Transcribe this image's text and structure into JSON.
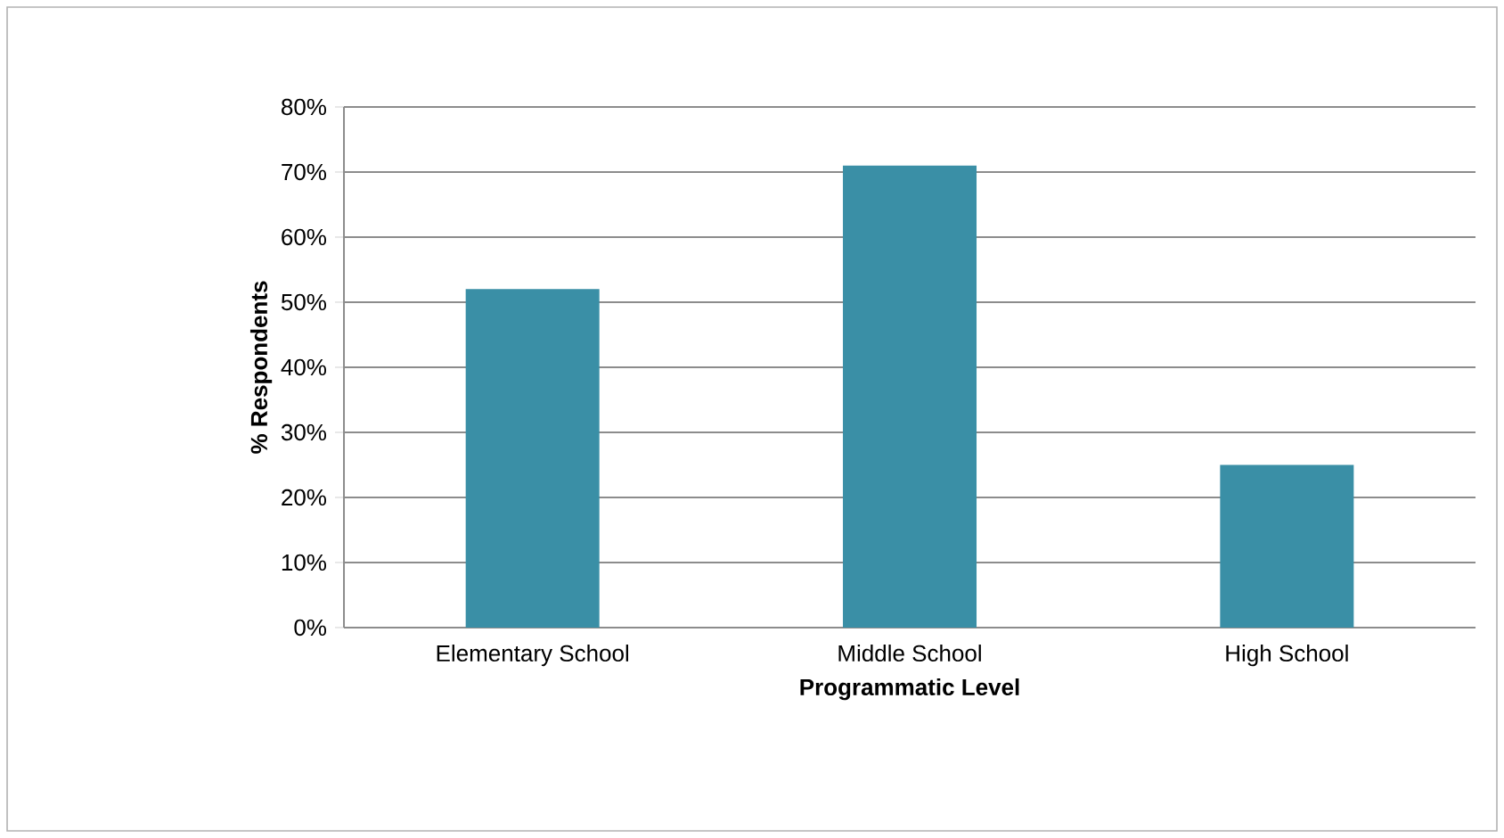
{
  "chart_data": {
    "type": "bar",
    "xlabel": "Programmatic Level",
    "ylabel": "% Respondents",
    "categories": [
      "Elementary School",
      "Middle School",
      "High School"
    ],
    "values": [
      52,
      71,
      25
    ],
    "color": "#3a8fa6",
    "ylim": [
      0,
      80
    ],
    "yticks": [
      {
        "value": 0,
        "label": "0%"
      },
      {
        "value": 10,
        "label": "10%"
      },
      {
        "value": 20,
        "label": "20%"
      },
      {
        "value": 30,
        "label": "30%"
      },
      {
        "value": 40,
        "label": "40%"
      },
      {
        "value": 50,
        "label": "50%"
      },
      {
        "value": 60,
        "label": "60%"
      },
      {
        "value": 70,
        "label": "70%"
      },
      {
        "value": 80,
        "label": "80%"
      }
    ],
    "grid": "y"
  }
}
